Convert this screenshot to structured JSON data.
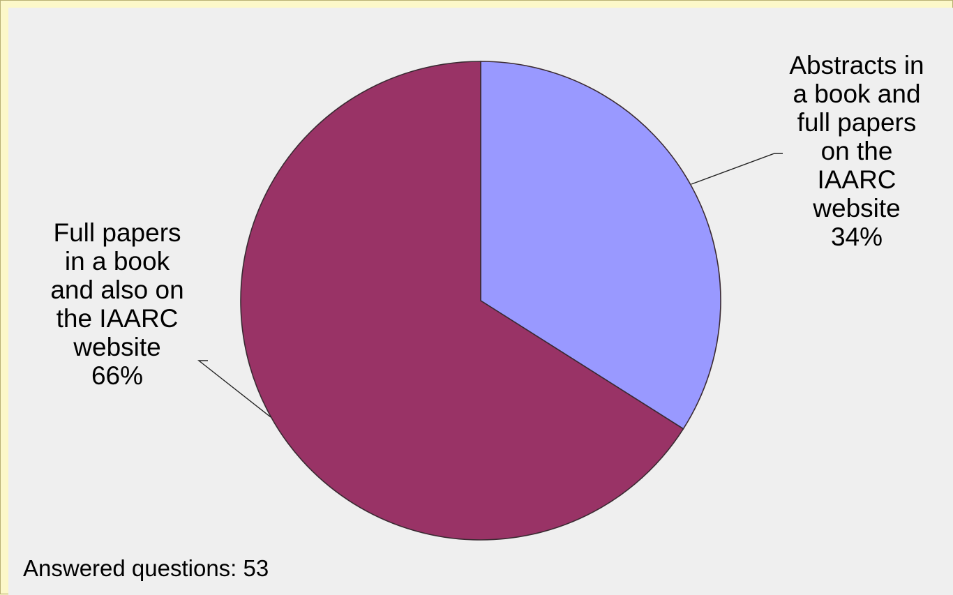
{
  "chart_data": {
    "type": "pie",
    "title": "",
    "slices": [
      {
        "label": "Abstracts in a book and full papers on the IAARC website",
        "label_lines": "Abstracts in\na book and\nfull papers\non the\nIAARC\nwebsite",
        "percent_text": "34%",
        "value": 34,
        "color": "#9999ff"
      },
      {
        "label": "Full papers in a book and also on the IAARC website",
        "label_lines": "Full papers\nin a book\nand also on\nthe IAARC\nwebsite",
        "percent_text": "66%",
        "value": 66,
        "color": "#993366"
      }
    ],
    "start_angle": "12 o'clock",
    "direction": "clockwise"
  },
  "note": "Answered questions: 53"
}
